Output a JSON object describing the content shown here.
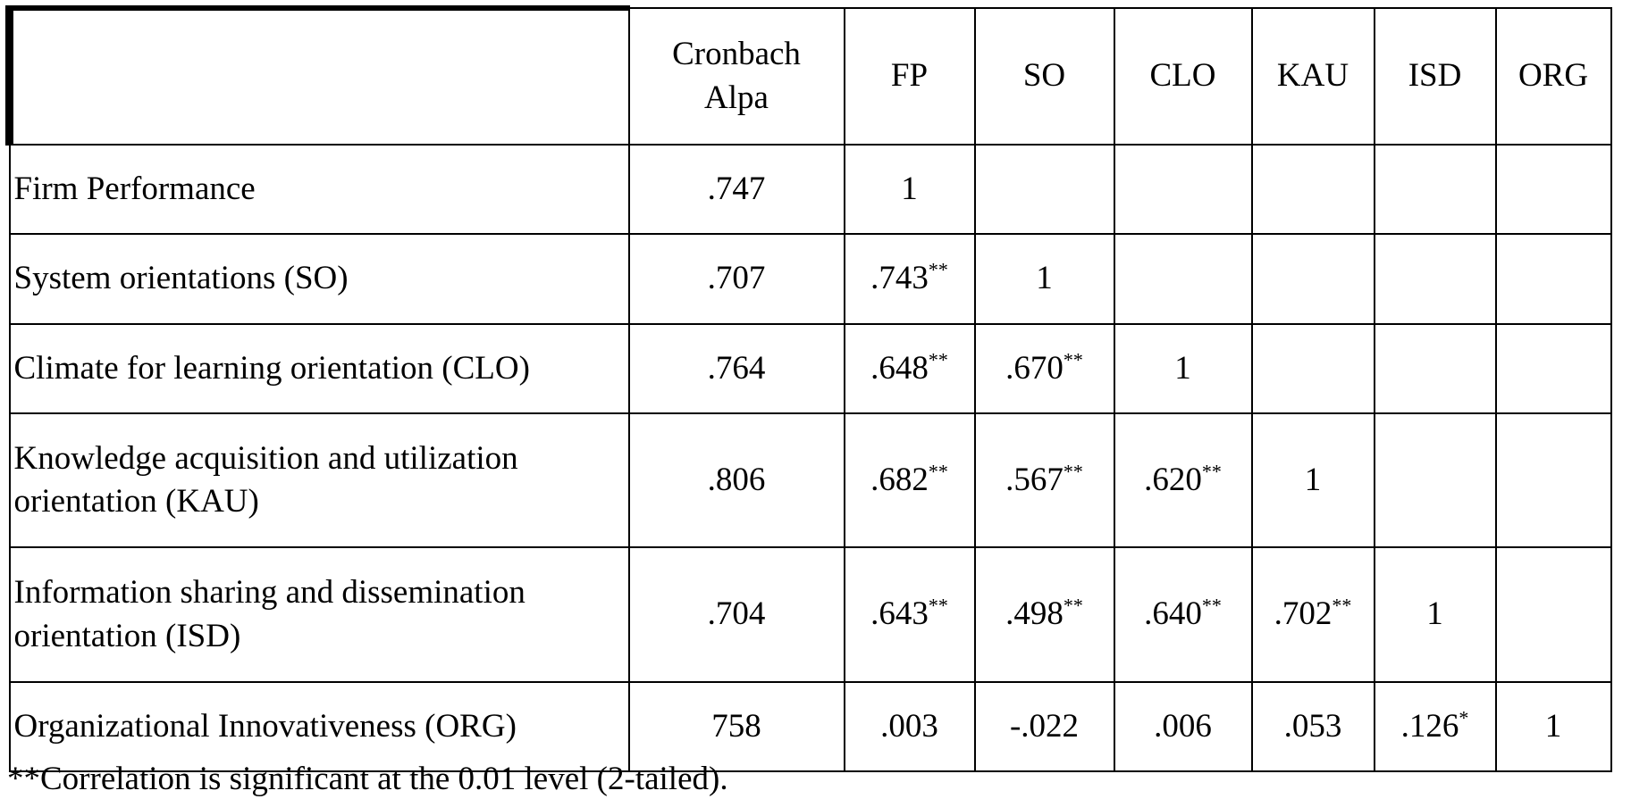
{
  "table": {
    "columns": [
      "",
      "Cronbach\nAlpa",
      "FP",
      "SO",
      "CLO",
      "KAU",
      "ISD",
      "ORG"
    ],
    "rows": [
      {
        "label": "Firm Performance",
        "cells": [
          {
            "v": ".747",
            "s": ""
          },
          {
            "v": "1",
            "s": ""
          },
          {
            "v": "",
            "s": ""
          },
          {
            "v": "",
            "s": ""
          },
          {
            "v": "",
            "s": ""
          },
          {
            "v": "",
            "s": ""
          },
          {
            "v": "",
            "s": ""
          }
        ]
      },
      {
        "label": "System orientations (SO)",
        "cells": [
          {
            "v": ".707",
            "s": ""
          },
          {
            "v": ".743",
            "s": "**"
          },
          {
            "v": "1",
            "s": ""
          },
          {
            "v": "",
            "s": ""
          },
          {
            "v": "",
            "s": ""
          },
          {
            "v": "",
            "s": ""
          },
          {
            "v": "",
            "s": ""
          }
        ]
      },
      {
        "label": "Climate for learning orientation (CLO)",
        "cells": [
          {
            "v": ".764",
            "s": ""
          },
          {
            "v": ".648",
            "s": "**"
          },
          {
            "v": ".670",
            "s": "**"
          },
          {
            "v": "1",
            "s": ""
          },
          {
            "v": "",
            "s": ""
          },
          {
            "v": "",
            "s": ""
          },
          {
            "v": "",
            "s": ""
          }
        ]
      },
      {
        "label": "Knowledge acquisition and utilization orientation (KAU)",
        "cells": [
          {
            "v": ".806",
            "s": ""
          },
          {
            "v": ".682",
            "s": "**"
          },
          {
            "v": ".567",
            "s": "**"
          },
          {
            "v": ".620",
            "s": "**"
          },
          {
            "v": "1",
            "s": ""
          },
          {
            "v": "",
            "s": ""
          },
          {
            "v": "",
            "s": ""
          }
        ]
      },
      {
        "label": "Information sharing and dissemination orientation (ISD)",
        "cells": [
          {
            "v": ".704",
            "s": ""
          },
          {
            "v": ".643",
            "s": "**"
          },
          {
            "v": ".498",
            "s": "**"
          },
          {
            "v": ".640",
            "s": "**"
          },
          {
            "v": ".702",
            "s": "**"
          },
          {
            "v": "1",
            "s": ""
          },
          {
            "v": "",
            "s": ""
          }
        ]
      },
      {
        "label": "Organizational Innovativeness (ORG)",
        "cells": [
          {
            "v": "758",
            "s": ""
          },
          {
            "v": ".003",
            "s": ""
          },
          {
            "v": "-.022",
            "s": ""
          },
          {
            "v": ".006",
            "s": ""
          },
          {
            "v": ".053",
            "s": ""
          },
          {
            "v": ".126",
            "s": "*"
          },
          {
            "v": "1",
            "s": ""
          }
        ]
      }
    ]
  },
  "footnote": "**Correlation is significant at the 0.01 level (2-tailed)."
}
